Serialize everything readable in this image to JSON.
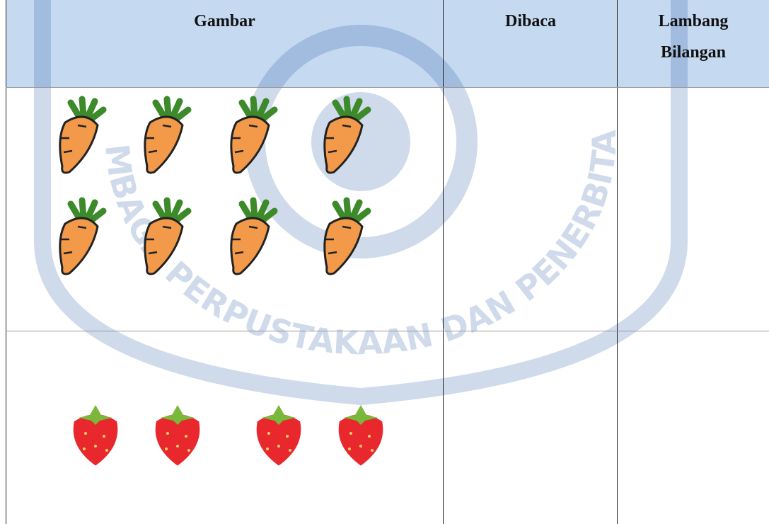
{
  "table": {
    "header": [
      "Gambar",
      "Dibaca",
      "Lambang Bilangan"
    ]
  },
  "watermark": "LEMBAGA PERPUSTAKAAN DAN PENERBITAN"
}
